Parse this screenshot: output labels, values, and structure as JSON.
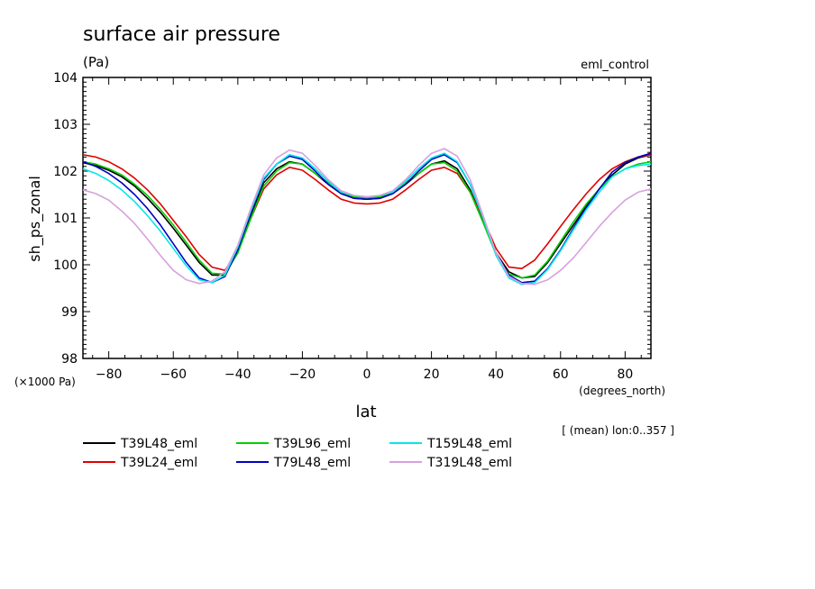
{
  "chart_data": {
    "type": "line",
    "title": "surface air pressure",
    "subtitle": "(Pa)",
    "experiment": "eml_control",
    "xlabel": "lat",
    "xunits": "(degrees_north)",
    "ylabel": "sh_ps_zonal",
    "yscale_note": "(×1000 Pa)",
    "averaging_note": "[ (mean) lon:0..357 ]",
    "xlim": [
      -88,
      88
    ],
    "ylim": [
      98,
      104
    ],
    "xticks": [
      -80,
      -60,
      -40,
      -20,
      0,
      20,
      40,
      60,
      80
    ],
    "yticks": [
      98,
      99,
      100,
      101,
      102,
      103,
      104
    ],
    "legend_position": "bottom",
    "x": [
      -88,
      -84,
      -80,
      -76,
      -72,
      -68,
      -64,
      -60,
      -56,
      -52,
      -48,
      -44,
      -40,
      -36,
      -32,
      -28,
      -24,
      -20,
      -16,
      -12,
      -8,
      -4,
      0,
      4,
      8,
      12,
      16,
      20,
      24,
      28,
      32,
      36,
      40,
      44,
      48,
      52,
      56,
      60,
      64,
      68,
      72,
      76,
      80,
      84,
      88
    ],
    "series": [
      {
        "name": "T39L48_eml",
        "color": "#000000",
        "values": [
          102.18,
          102.12,
          102.02,
          101.88,
          101.68,
          101.42,
          101.12,
          100.78,
          100.42,
          100.05,
          99.78,
          99.78,
          100.3,
          101.05,
          101.75,
          102.05,
          102.2,
          102.15,
          101.95,
          101.72,
          101.52,
          101.42,
          101.4,
          101.42,
          101.52,
          101.72,
          101.95,
          102.15,
          102.22,
          102.05,
          101.6,
          100.95,
          100.25,
          99.85,
          99.72,
          99.75,
          100.05,
          100.45,
          100.85,
          101.25,
          101.62,
          101.92,
          102.15,
          102.28,
          102.35
        ]
      },
      {
        "name": "T39L24_eml",
        "color": "#e00000",
        "values": [
          102.35,
          102.3,
          102.2,
          102.05,
          101.85,
          101.6,
          101.3,
          100.95,
          100.6,
          100.22,
          99.95,
          99.88,
          100.3,
          100.98,
          101.62,
          101.92,
          102.08,
          102.02,
          101.82,
          101.6,
          101.4,
          101.32,
          101.3,
          101.32,
          101.4,
          101.6,
          101.82,
          102.02,
          102.08,
          101.95,
          101.55,
          100.98,
          100.35,
          99.95,
          99.92,
          100.1,
          100.45,
          100.82,
          101.18,
          101.52,
          101.82,
          102.05,
          102.2,
          102.3,
          102.35
        ]
      },
      {
        "name": "T39L96_eml",
        "color": "#00d000",
        "values": [
          102.2,
          102.15,
          102.05,
          101.92,
          101.72,
          101.48,
          101.18,
          100.85,
          100.48,
          100.1,
          99.82,
          99.8,
          100.25,
          100.98,
          101.68,
          102.0,
          102.18,
          102.15,
          101.95,
          101.75,
          101.55,
          101.45,
          101.42,
          101.45,
          101.55,
          101.75,
          101.95,
          102.15,
          102.18,
          102.0,
          101.55,
          100.9,
          100.22,
          99.8,
          99.72,
          99.78,
          100.08,
          100.5,
          100.92,
          101.3,
          101.62,
          101.88,
          102.05,
          102.15,
          102.2
        ]
      },
      {
        "name": "T79L48_eml",
        "color": "#0000c0",
        "values": [
          102.2,
          102.1,
          101.95,
          101.75,
          101.5,
          101.2,
          100.85,
          100.45,
          100.05,
          99.72,
          99.62,
          99.75,
          100.32,
          101.1,
          101.82,
          102.15,
          102.32,
          102.25,
          102.0,
          101.72,
          101.52,
          101.42,
          101.4,
          101.42,
          101.52,
          101.72,
          102.0,
          102.25,
          102.35,
          102.18,
          101.72,
          101.0,
          100.25,
          99.78,
          99.62,
          99.65,
          99.92,
          100.32,
          100.78,
          101.22,
          101.62,
          101.98,
          102.18,
          102.3,
          102.38
        ]
      },
      {
        "name": "T159L48_eml",
        "color": "#00e8e8",
        "values": [
          102.05,
          101.95,
          101.8,
          101.6,
          101.35,
          101.05,
          100.72,
          100.35,
          99.98,
          99.68,
          99.62,
          99.78,
          100.38,
          101.15,
          101.85,
          102.15,
          102.35,
          102.28,
          102.05,
          101.78,
          101.55,
          101.48,
          101.45,
          101.48,
          101.55,
          101.78,
          102.05,
          102.28,
          102.38,
          102.2,
          101.72,
          101.0,
          100.2,
          99.72,
          99.58,
          99.62,
          99.9,
          100.3,
          100.75,
          101.18,
          101.55,
          101.88,
          102.05,
          102.12,
          102.15
        ]
      },
      {
        "name": "T319L48_eml",
        "color": "#d8a0e0",
        "values": [
          101.6,
          101.52,
          101.38,
          101.15,
          100.88,
          100.55,
          100.2,
          99.88,
          99.68,
          99.6,
          99.65,
          99.85,
          100.42,
          101.2,
          101.92,
          102.28,
          102.45,
          102.38,
          102.12,
          101.82,
          101.58,
          101.48,
          101.45,
          101.48,
          101.58,
          101.82,
          102.12,
          102.38,
          102.48,
          102.32,
          101.82,
          101.05,
          100.25,
          99.75,
          99.6,
          99.58,
          99.68,
          99.88,
          100.15,
          100.48,
          100.82,
          101.12,
          101.38,
          101.55,
          101.62
        ]
      }
    ]
  }
}
